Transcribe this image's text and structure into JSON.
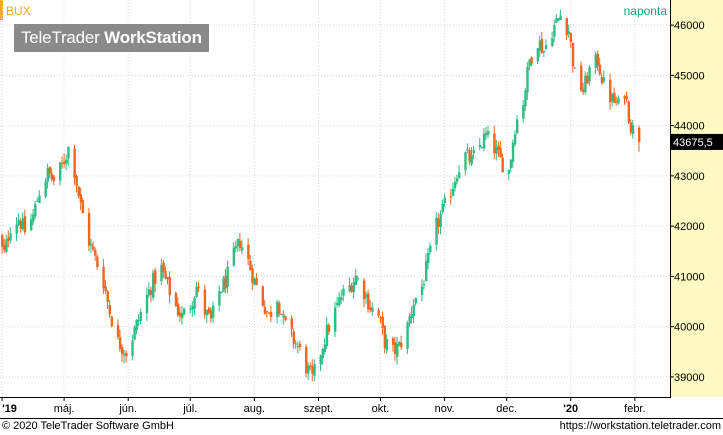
{
  "header": {
    "symbol": "BUX",
    "interval": "naponta",
    "watermark_regular": "TeleTrader ",
    "watermark_bold": "WorkStation"
  },
  "footer": {
    "copyright": "© 2020 TeleTrader Software GmbH",
    "url": "https://workstation.teletrader.com"
  },
  "colors": {
    "up": "#2ebd85",
    "down": "#f0661e",
    "axis_bg": "#fff9c4",
    "grid": "#d9d9d9",
    "marker": "#f5a623",
    "last_label_bg": "#000000",
    "symbol_text": "#f5a623",
    "interval_text": "#16a37a"
  },
  "chart_data": {
    "type": "candlestick",
    "title": "",
    "symbol": "BUX",
    "interval": "naponta",
    "last_value": 43675.5,
    "last_value_label": "43675,5",
    "ylim": [
      38600,
      46500
    ],
    "y_ticks": [
      39000,
      40000,
      41000,
      42000,
      43000,
      44000,
      45000,
      46000
    ],
    "y_tick_labels": [
      "39000",
      "40000",
      "41000",
      "42000",
      "43000",
      "44000",
      "45000",
      "46000"
    ],
    "x_tick_labels": [
      "'19",
      "máj.",
      "jún.",
      "júl.",
      "aug.",
      "szept.",
      "okt.",
      "nov.",
      "dec.",
      "'20",
      "febr."
    ],
    "x_tick_dates": [
      "2019-04-01",
      "2019-05-01",
      "2019-06-01",
      "2019-07-01",
      "2019-08-01",
      "2019-09-01",
      "2019-10-01",
      "2019-11-01",
      "2019-12-01",
      "2020-01-01",
      "2020-02-01"
    ],
    "x_range": [
      "2019-03-31",
      "2020-02-18"
    ],
    "grid": true,
    "path": [
      [
        "2019-03-29",
        41750
      ],
      [
        "2019-04-02",
        41450
      ],
      [
        "2019-04-05",
        42000
      ],
      [
        "2019-04-09",
        42150
      ],
      [
        "2019-04-12",
        41900
      ],
      [
        "2019-04-16",
        42200
      ],
      [
        "2019-04-19",
        42700
      ],
      [
        "2019-04-23",
        43050
      ],
      [
        "2019-04-26",
        42900
      ],
      [
        "2019-04-30",
        43200
      ],
      [
        "2019-05-03",
        43550
      ],
      [
        "2019-05-06",
        43100
      ],
      [
        "2019-05-09",
        42400
      ],
      [
        "2019-05-13",
        41700
      ],
      [
        "2019-05-16",
        41350
      ],
      [
        "2019-05-20",
        40900
      ],
      [
        "2019-05-23",
        40300
      ],
      [
        "2019-05-27",
        39700
      ],
      [
        "2019-05-31",
        39500
      ],
      [
        "2019-06-03",
        39800
      ],
      [
        "2019-06-06",
        40150
      ],
      [
        "2019-06-10",
        40600
      ],
      [
        "2019-06-13",
        40900
      ],
      [
        "2019-06-17",
        41150
      ],
      [
        "2019-06-20",
        40800
      ],
      [
        "2019-06-24",
        40400
      ],
      [
        "2019-06-27",
        40200
      ],
      [
        "2019-07-01",
        40450
      ],
      [
        "2019-07-04",
        40800
      ],
      [
        "2019-07-08",
        40300
      ],
      [
        "2019-07-11",
        40100
      ],
      [
        "2019-07-15",
        40700
      ],
      [
        "2019-07-18",
        40900
      ],
      [
        "2019-07-22",
        41400
      ],
      [
        "2019-07-25",
        41700
      ],
      [
        "2019-07-29",
        41300
      ],
      [
        "2019-08-01",
        40900
      ],
      [
        "2019-08-05",
        40500
      ],
      [
        "2019-08-08",
        40200
      ],
      [
        "2019-08-12",
        40600
      ],
      [
        "2019-08-15",
        40100
      ],
      [
        "2019-08-19",
        39800
      ],
      [
        "2019-08-22",
        39600
      ],
      [
        "2019-08-26",
        39200
      ],
      [
        "2019-08-29",
        38950
      ],
      [
        "2019-09-02",
        39500
      ],
      [
        "2019-09-05",
        39900
      ],
      [
        "2019-09-09",
        40300
      ],
      [
        "2019-09-12",
        40600
      ],
      [
        "2019-09-16",
        40800
      ],
      [
        "2019-09-19",
        41000
      ],
      [
        "2019-09-23",
        40700
      ],
      [
        "2019-09-26",
        40400
      ],
      [
        "2019-09-30",
        40200
      ],
      [
        "2019-10-03",
        39700
      ],
      [
        "2019-10-07",
        39500
      ],
      [
        "2019-10-10",
        39600
      ],
      [
        "2019-10-14",
        40000
      ],
      [
        "2019-10-17",
        40500
      ],
      [
        "2019-10-21",
        40800
      ],
      [
        "2019-10-24",
        41300
      ],
      [
        "2019-10-28",
        42000
      ],
      [
        "2019-10-31",
        42300
      ],
      [
        "2019-11-04",
        42700
      ],
      [
        "2019-11-07",
        43100
      ],
      [
        "2019-11-11",
        43400
      ],
      [
        "2019-11-14",
        43300
      ],
      [
        "2019-11-18",
        43600
      ],
      [
        "2019-11-21",
        43800
      ],
      [
        "2019-11-25",
        43550
      ],
      [
        "2019-11-28",
        43300
      ],
      [
        "2019-12-02",
        43100
      ],
      [
        "2019-12-05",
        44000
      ],
      [
        "2019-12-09",
        44500
      ],
      [
        "2019-12-12",
        45300
      ],
      [
        "2019-12-16",
        45700
      ],
      [
        "2019-12-19",
        45500
      ],
      [
        "2019-12-23",
        45900
      ],
      [
        "2019-12-27",
        46200
      ],
      [
        "2019-12-31",
        45900
      ],
      [
        "2020-01-03",
        45000
      ],
      [
        "2020-01-07",
        44700
      ],
      [
        "2020-01-10",
        45100
      ],
      [
        "2020-01-14",
        45300
      ],
      [
        "2020-01-17",
        44800
      ],
      [
        "2020-01-21",
        44500
      ],
      [
        "2020-01-24",
        44400
      ],
      [
        "2020-01-27",
        44700
      ],
      [
        "2020-01-30",
        44000
      ],
      [
        "2020-02-03",
        43675
      ]
    ],
    "series": [
      {
        "values_note": "Daily OHLC candles generated from the price path above"
      }
    ]
  }
}
